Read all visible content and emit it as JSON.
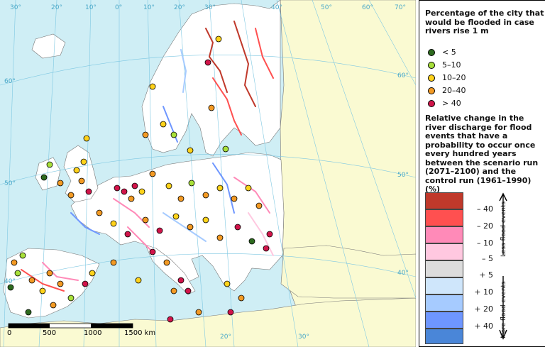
{
  "map": {
    "longitude_labels": [
      "30°",
      "20°",
      "10°",
      "0°",
      "10°",
      "20°",
      "30°",
      "40°",
      "50°",
      "60°",
      "70°"
    ],
    "latitude_labels": [
      "60°",
      "50°",
      "40°",
      "60°",
      "50°",
      "40°"
    ],
    "lower_longitude_labels": [
      "20°",
      "30°"
    ],
    "scale_bar": {
      "ticks": [
        "0",
        "500",
        "1000",
        "1500 km"
      ]
    },
    "colors": {
      "sea": "#cfeef5",
      "land_in_scope": "#ffffff",
      "land_outside": "#fafad2",
      "graticule": "#7fc8e2",
      "border": "#555555"
    }
  },
  "legend": {
    "cities_title": "Percentage of the city that would be flooded in case rivers rise 1 m",
    "city_classes": [
      {
        "label": "< 5",
        "color": "#2d6a1e"
      },
      {
        "label": "5–10",
        "color": "#a8e03a"
      },
      {
        "label": "10–20",
        "color": "#ffd21a"
      },
      {
        "label": "20–40",
        "color": "#f39a24"
      },
      {
        "label": "> 40",
        "color": "#d1144a"
      }
    ],
    "discharge_title": "Relative change in the river discharge for flood events that have a probability to occur once every hundred years between the scenario run (2071–2100) and the control run (1961–1990) (%)",
    "discharge_swatches": [
      {
        "color": "#c0392b"
      },
      {
        "color": "#ff5050"
      },
      {
        "color": "#ff8ab8"
      },
      {
        "color": "#ffc8e0"
      },
      {
        "color": "#dcdcdc"
      },
      {
        "color": "#cfe6fb"
      },
      {
        "color": "#a6cbff"
      },
      {
        "color": "#6e96ff"
      },
      {
        "color": "#4a86d8"
      }
    ],
    "discharge_labels": [
      "– 40",
      "– 20",
      "– 10",
      "– 5",
      "+ 5",
      "+ 10",
      "+ 20",
      "+ 40"
    ],
    "less_label": "Less flood events",
    "more_label": "More flood events"
  }
}
